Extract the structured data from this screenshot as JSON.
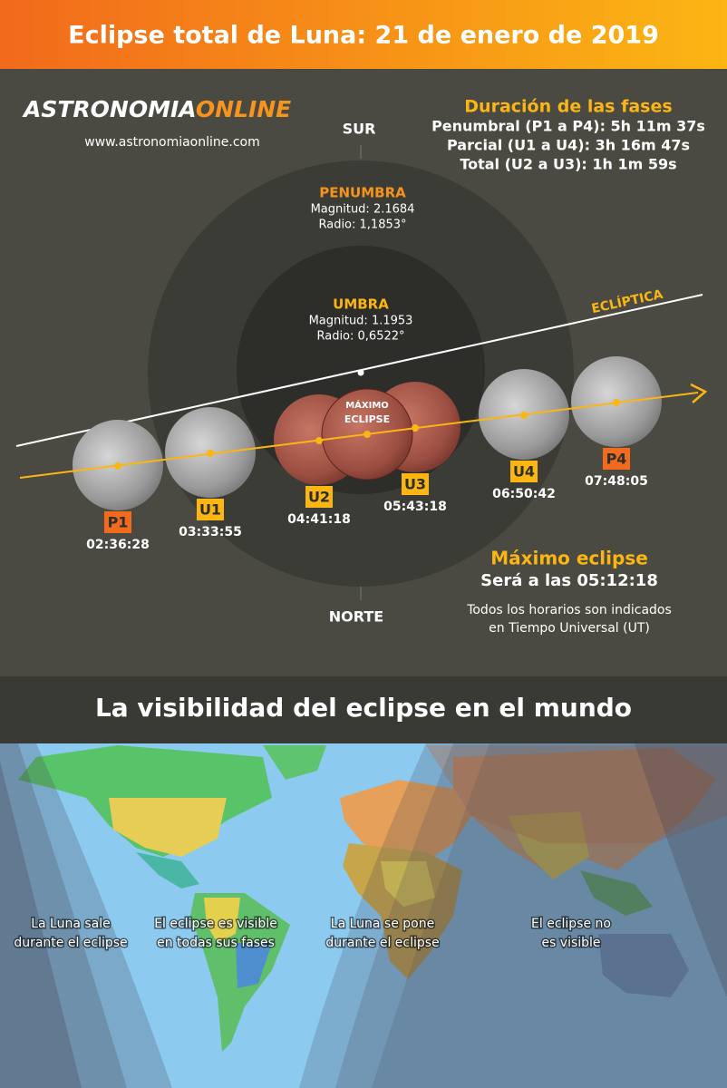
{
  "header": {
    "title": "Eclipse total de Luna: 21 de enero de 2019"
  },
  "logo": {
    "brand_start": "ASTRONOMIA",
    "brand_end": "ONLINE",
    "website": "www.astronomiaonline.com"
  },
  "durations": {
    "title": "Duración de las fases",
    "lines": [
      "Penumbral (P1 a P4): 5h 11m 37s",
      "Parcial (U1 a U4): 3h 16m 47s",
      "Total (U2 a U3): 1h 1m 59s"
    ]
  },
  "directions": {
    "south": "SUR",
    "north": "NORTE"
  },
  "penumbra": {
    "label": "PENUMBRA",
    "magnitude": "Magnitud: 2.1684",
    "radius": "Radio: 1,1853°"
  },
  "umbra": {
    "label": "UMBRA",
    "magnitude": "Magnitud: 1.1953",
    "radius": "Radio: 0,6522°"
  },
  "ecliptic": "ECLÍPTICA",
  "maximum_marker": [
    "MÁXIMO",
    "ECLIPSE"
  ],
  "phases": [
    {
      "label": "P1",
      "time": "02:36:28"
    },
    {
      "label": "U1",
      "time": "03:33:55"
    },
    {
      "label": "U2",
      "time": "04:41:18"
    },
    {
      "label": "U3",
      "time": "05:43:18"
    },
    {
      "label": "U4",
      "time": "06:50:42"
    },
    {
      "label": "P4",
      "time": "07:48:05"
    }
  ],
  "maximum": {
    "title": "Máximo eclipse",
    "time": "Será a las 05:12:18"
  },
  "note": [
    "Todos los horarios son indicados",
    "en Tiempo Universal (UT)"
  ],
  "visibility": {
    "title": "La visibilidad del eclipse en el mundo",
    "regions": [
      [
        "La Luna sale",
        "durante el eclipse"
      ],
      [
        "El eclipse es visible",
        "en todas sus fases"
      ],
      [
        "La Luna se pone",
        "durante el eclipse"
      ],
      [
        "El eclipse no",
        "es visible"
      ]
    ]
  }
}
